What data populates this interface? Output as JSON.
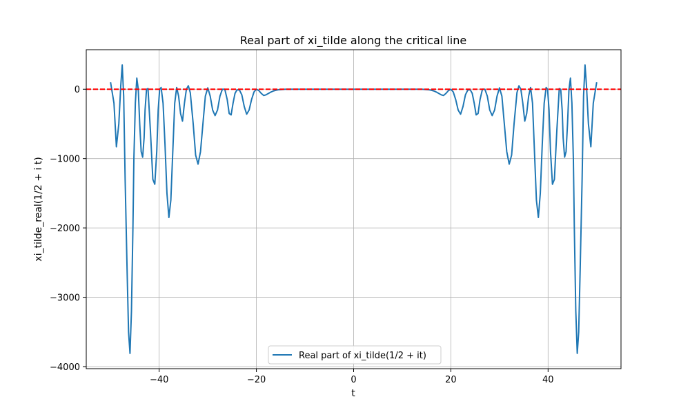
{
  "chart_data": {
    "type": "line",
    "title": "Real part of xi_tilde along the critical line",
    "xlabel": "t",
    "ylabel": "xi_tilde_real(1/2 + i t)",
    "xlim": [
      -55,
      55
    ],
    "ylim": [
      -4030,
      570
    ],
    "xticks": [
      -40,
      -20,
      0,
      20,
      40
    ],
    "xtick_labels": [
      "−40",
      "−20",
      "0",
      "20",
      "40"
    ],
    "yticks": [
      0,
      -1000,
      -2000,
      -3000,
      -4000
    ],
    "ytick_labels": [
      "0",
      "−1000",
      "−2000",
      "−3000",
      "−4000"
    ],
    "grid": true,
    "legend_position": "lower center",
    "series": [
      {
        "name": "Real part of xi_tilde(1/2 + it)",
        "color": "#1f77b4",
        "style": "solid",
        "x": [
          -50,
          -49.3,
          -48.8,
          -48.3,
          -47.9,
          -47.6,
          -47.3,
          -47.0,
          -46.6,
          -46.3,
          -46.0,
          -45.7,
          -45.4,
          -45.2,
          -44.9,
          -44.6,
          -44.3,
          -44.0,
          -43.7,
          -43.4,
          -43.1,
          -42.9,
          -42.6,
          -42.3,
          -41.8,
          -41.3,
          -40.9,
          -40.5,
          -40.2,
          -39.9,
          -39.6,
          -39.2,
          -38.8,
          -38.4,
          -38.0,
          -37.6,
          -37.2,
          -36.8,
          -36.4,
          -36.0,
          -35.6,
          -35.2,
          -34.8,
          -34.4,
          -34.0,
          -33.6,
          -33.0,
          -32.5,
          -32.0,
          -31.5,
          -31.0,
          -30.5,
          -30.0,
          -29.5,
          -29.0,
          -28.5,
          -28.0,
          -27.5,
          -27.0,
          -26.5,
          -26.0,
          -25.6,
          -25.2,
          -24.8,
          -24.4,
          -24.0,
          -23.5,
          -23.0,
          -22.5,
          -22.0,
          -21.5,
          -21.0,
          -20.5,
          -20.0,
          -19.5,
          -19.0,
          -18.5,
          -18.0,
          -17.5,
          -17.0,
          -16.5,
          -16.0,
          -15.5,
          -15.0,
          -14.0,
          -13.0,
          -12.0,
          -11.0,
          -10.0,
          -9.0,
          -8.0,
          -7.0,
          -6.0,
          -5.0,
          -4.0,
          -3.0,
          -2.0,
          -1.0,
          0,
          1.0,
          2.0,
          3.0,
          4.0,
          5.0,
          6.0,
          7.0,
          8.0,
          9.0,
          10.0,
          11.0,
          12.0,
          13.0,
          14.0,
          15.0,
          15.5,
          16.0,
          16.5,
          17.0,
          17.5,
          18.0,
          18.5,
          19.0,
          19.5,
          20.0,
          20.5,
          21.0,
          21.5,
          22.0,
          22.5,
          23.0,
          23.5,
          24.0,
          24.4,
          24.8,
          25.2,
          25.6,
          26.0,
          26.5,
          27.0,
          27.5,
          28.0,
          28.5,
          29.0,
          29.5,
          30.0,
          30.5,
          31.0,
          31.5,
          32.0,
          32.5,
          33.0,
          33.6,
          34.0,
          34.4,
          34.8,
          35.2,
          35.6,
          36.0,
          36.4,
          36.8,
          37.2,
          37.6,
          38.0,
          38.4,
          38.8,
          39.2,
          39.6,
          39.9,
          40.2,
          40.5,
          40.9,
          41.3,
          41.8,
          42.3,
          42.6,
          42.9,
          43.1,
          43.4,
          43.7,
          44.0,
          44.3,
          44.6,
          44.9,
          45.2,
          45.4,
          45.7,
          46.0,
          46.3,
          46.6,
          47.0,
          47.3,
          47.6,
          47.9,
          48.3,
          48.8,
          49.3,
          50
        ],
        "y": [
          100,
          -200,
          -830,
          -500,
          50,
          350,
          -100,
          -1300,
          -2600,
          -3500,
          -3810,
          -3200,
          -2000,
          -1000,
          -200,
          160,
          0,
          -500,
          -900,
          -980,
          -700,
          -300,
          0,
          10,
          -600,
          -1300,
          -1370,
          -900,
          -300,
          0,
          25,
          -200,
          -800,
          -1500,
          -1850,
          -1600,
          -900,
          -200,
          25,
          -100,
          -350,
          -460,
          -200,
          0,
          50,
          -50,
          -500,
          -950,
          -1080,
          -900,
          -500,
          -100,
          20,
          -100,
          -300,
          -380,
          -300,
          -100,
          0,
          0,
          -150,
          -350,
          -370,
          -200,
          -60,
          -10,
          -10,
          -80,
          -250,
          -360,
          -300,
          -150,
          -40,
          0,
          -20,
          -60,
          -90,
          -80,
          -60,
          -40,
          -25,
          -15,
          -8,
          -5,
          0,
          0,
          0,
          0,
          0,
          0,
          0,
          0,
          0,
          0,
          0,
          0,
          0,
          0,
          0,
          0,
          0,
          0,
          0,
          0,
          0,
          0,
          0,
          0,
          0,
          0,
          0,
          0,
          0,
          -5,
          -8,
          -15,
          -25,
          -40,
          -60,
          -80,
          -90,
          -60,
          -20,
          0,
          -40,
          -150,
          -300,
          -360,
          -250,
          -80,
          -10,
          -10,
          -60,
          -200,
          -370,
          -350,
          -150,
          0,
          0,
          -100,
          -300,
          -380,
          -300,
          -100,
          20,
          -100,
          -500,
          -900,
          -1080,
          -950,
          -500,
          -50,
          50,
          0,
          -200,
          -460,
          -350,
          -100,
          25,
          -200,
          -900,
          -1600,
          -1850,
          -1500,
          -800,
          -200,
          25,
          0,
          -300,
          -900,
          -1370,
          -1300,
          -600,
          10,
          0,
          -300,
          -700,
          -980,
          -900,
          -500,
          0,
          160,
          -200,
          -1000,
          -2000,
          -3200,
          -3810,
          -3500,
          -2600,
          -1300,
          -100,
          350,
          50,
          -500,
          -830,
          -200,
          100
        ]
      },
      {
        "name": "",
        "color": "#ff0000",
        "style": "dashed",
        "y_constant": 0
      }
    ]
  },
  "legend": {
    "label": "Real part of xi_tilde(1/2 + it)"
  }
}
